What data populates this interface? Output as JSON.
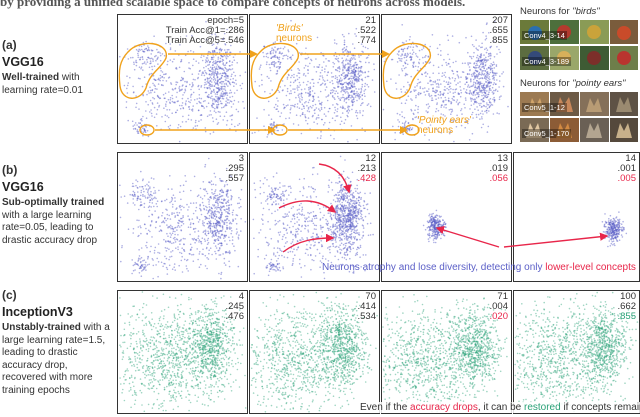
{
  "caption_top": "by providing a unified scalable space to compare concepts of neurons across models.",
  "colors": {
    "purple": "#5b5fc7",
    "green": "#2aa177",
    "red": "#e8264a",
    "orange": "#f0a21c"
  },
  "rows": [
    {
      "letter": "(a)",
      "model": "VGG16",
      "desc_bold": "Well-trained",
      "desc_rest": " with learning rate=0.01",
      "panels": [
        {
          "epoch_label": "epoch=5",
          "acc1_label": "Train Acc@1=.286",
          "acc5_label": "Train Acc@5=.546"
        },
        {
          "epoch": "21",
          "acc1": ".522",
          "acc5": ".774"
        },
        {
          "epoch": "207",
          "acc1": ".655",
          "acc5": ".855"
        }
      ],
      "birds_label": "'Birds'",
      "birds_suffix": "neurons",
      "ears_label": "'Pointy ears'",
      "ears_suffix": "neurons"
    },
    {
      "letter": "(b)",
      "model": "VGG16",
      "desc_bold": "Sub-optimally trained",
      "desc_rest": " with a large learning rate=0.05, leading to drastic accuracy drop",
      "panels": [
        {
          "epoch": "3",
          "acc1": ".295",
          "acc5": ".557"
        },
        {
          "epoch": "12",
          "acc1": ".213",
          "acc5": ".428"
        },
        {
          "epoch": "13",
          "acc1": ".019",
          "acc5": ".056"
        },
        {
          "epoch": "14",
          "acc1": ".001",
          "acc5": ".005"
        }
      ],
      "note_purple": "Neurons atrophy and lose diversity, detecting only ",
      "note_red": "lower-level concepts"
    },
    {
      "letter": "(c)",
      "model": "InceptionV3",
      "desc_bold": "Unstably-trained",
      "desc_rest": " with a large learning rate=1.5, leading to drastic accuracy drop, recovered with more training epochs",
      "panels": [
        {
          "epoch": "4",
          "acc1": ".245",
          "acc5": ".476"
        },
        {
          "epoch": "70",
          "acc1": ".414",
          "acc5": ".534"
        },
        {
          "epoch": "71",
          "acc1": ".004",
          "acc5": ".020"
        },
        {
          "epoch": "100",
          "acc1": ".662",
          "acc5": ".855"
        }
      ],
      "note_a": "Even if the ",
      "note_b": "accuracy drops",
      "note_c": ", it can be ",
      "note_d": "restored",
      "note_e": " if concepts remain"
    }
  ],
  "thumbs": {
    "birds_title_prefix": "Neurons for ",
    "birds_title": "\"birds\"",
    "birds_tags": [
      "Conv4_3-14",
      "Conv4_3-189"
    ],
    "ears_title_prefix": "Neurons for ",
    "ears_title": "\"pointy ears\"",
    "ears_tags": [
      "Conv5_1-12",
      "Conv5_1-170"
    ]
  }
}
